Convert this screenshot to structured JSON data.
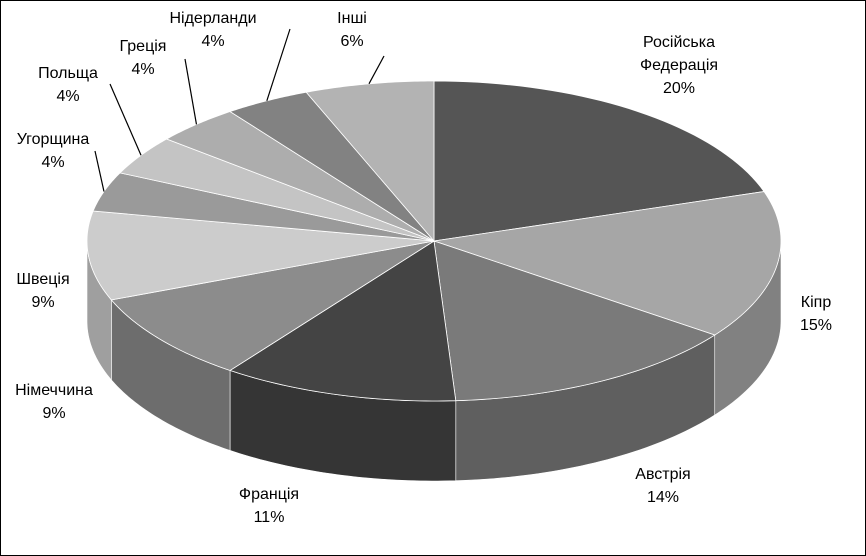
{
  "chart_data": {
    "type": "pie3d",
    "categories": [
      "Російська Федерація",
      "Кіпр",
      "Австрія",
      "Франція",
      "Німеччина",
      "Швеція",
      "Угорщина",
      "Польща",
      "Греція",
      "Нідерланди",
      "Інші"
    ],
    "values": [
      20,
      15,
      14,
      11,
      9,
      9,
      4,
      4,
      4,
      4,
      6
    ],
    "value_labels": [
      "20%",
      "15%",
      "14%",
      "11%",
      "9%",
      "9%",
      "4%",
      "4%",
      "4%",
      "4%",
      "6%"
    ],
    "colors": [
      "#555555",
      "#a6a6a6",
      "#7a7a7a",
      "#444444",
      "#8c8c8c",
      "#cccccc",
      "#9a9a9a",
      "#c4c4c4",
      "#adadad",
      "#828282",
      "#b3b3b3"
    ]
  }
}
